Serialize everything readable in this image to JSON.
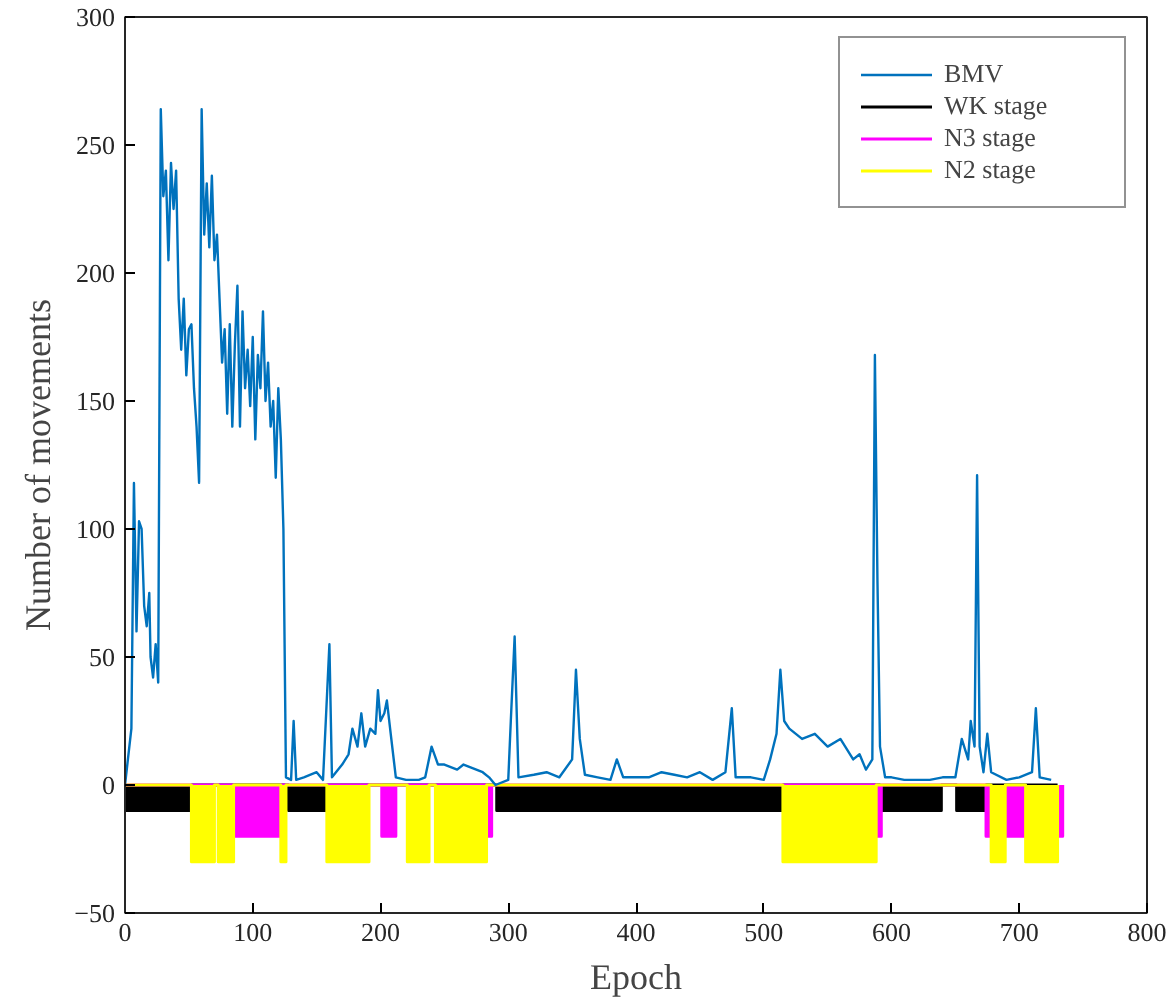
{
  "chart_data": {
    "type": "line",
    "xlabel": "Epoch",
    "ylabel": "Number of movements",
    "xlim": [
      0,
      800
    ],
    "ylim": [
      -50,
      300
    ],
    "xticks": [
      0,
      100,
      200,
      300,
      400,
      500,
      600,
      700,
      800
    ],
    "yticks": [
      -50,
      0,
      50,
      100,
      150,
      200,
      250,
      300
    ],
    "grid": false,
    "legend": "top right",
    "series": [
      {
        "name": "BMV",
        "color": "#0072bd",
        "x": [
          0,
          5,
          7,
          9,
          11,
          13,
          15,
          17,
          19,
          20,
          22,
          24,
          26,
          28,
          30,
          32,
          34,
          36,
          38,
          40,
          42,
          44,
          46,
          48,
          50,
          52,
          54,
          56,
          58,
          60,
          62,
          64,
          66,
          68,
          70,
          72,
          74,
          76,
          78,
          80,
          82,
          84,
          86,
          88,
          90,
          92,
          94,
          96,
          98,
          100,
          102,
          104,
          106,
          108,
          110,
          112,
          114,
          116,
          118,
          120,
          122,
          124,
          126,
          130,
          132,
          134,
          140,
          150,
          155,
          160,
          162,
          170,
          175,
          178,
          182,
          185,
          188,
          192,
          196,
          198,
          200,
          203,
          205,
          208,
          212,
          220,
          230,
          235,
          240,
          245,
          250,
          260,
          265,
          270,
          280,
          285,
          290,
          300,
          302,
          305,
          308,
          320,
          330,
          340,
          350,
          353,
          356,
          360,
          370,
          380,
          385,
          390,
          400,
          410,
          420,
          430,
          440,
          450,
          460,
          470,
          475,
          478,
          490,
          500,
          505,
          510,
          513,
          516,
          520,
          530,
          540,
          550,
          560,
          570,
          575,
          580,
          585,
          587,
          589,
          591,
          595,
          600,
          610,
          620,
          630,
          640,
          650,
          655,
          660,
          662,
          665,
          667,
          669,
          672,
          675,
          678,
          690,
          700,
          710,
          713,
          716,
          725
        ],
        "values": [
          0,
          22,
          118,
          60,
          103,
          100,
          70,
          62,
          75,
          50,
          42,
          55,
          40,
          264,
          230,
          240,
          205,
          243,
          225,
          240,
          190,
          170,
          190,
          160,
          178,
          180,
          155,
          140,
          118,
          264,
          215,
          235,
          210,
          238,
          205,
          215,
          190,
          165,
          178,
          145,
          180,
          140,
          172,
          195,
          140,
          185,
          155,
          170,
          148,
          175,
          135,
          168,
          155,
          185,
          150,
          165,
          140,
          150,
          120,
          155,
          135,
          100,
          3,
          2,
          25,
          2,
          3,
          5,
          2,
          55,
          3,
          8,
          12,
          22,
          15,
          28,
          15,
          22,
          20,
          37,
          25,
          28,
          33,
          20,
          3,
          2,
          2,
          3,
          15,
          8,
          8,
          6,
          8,
          7,
          5,
          3,
          0,
          2,
          25,
          58,
          3,
          4,
          5,
          3,
          10,
          45,
          18,
          4,
          3,
          2,
          10,
          3,
          3,
          3,
          5,
          4,
          3,
          5,
          2,
          5,
          30,
          3,
          3,
          2,
          10,
          20,
          45,
          25,
          22,
          18,
          20,
          15,
          18,
          10,
          12,
          6,
          10,
          168,
          80,
          15,
          3,
          3,
          2,
          2,
          2,
          3,
          3,
          18,
          10,
          25,
          15,
          121,
          15,
          5,
          20,
          5,
          2,
          3,
          5,
          30,
          3,
          2
        ]
      },
      {
        "name": "WK stage",
        "color": "#000000",
        "type": "area",
        "x": [
          0,
          0,
          52,
          52,
          128,
          128,
          158,
          158,
          291,
          291,
          515,
          515,
          591,
          591,
          639,
          639,
          651,
          651,
          674,
          674,
          730
        ],
        "values": [
          0,
          -10,
          -10,
          0,
          0,
          -10,
          -10,
          0,
          0,
          -10,
          -10,
          0,
          0,
          -10,
          -10,
          0,
          0,
          -10,
          -10,
          0,
          0
        ]
      },
      {
        "name": "N3 stage",
        "color": "#ff00ff",
        "type": "area",
        "x": [
          0,
          85,
          85,
          122,
          122,
          201,
          201,
          212,
          212,
          283,
          283,
          287,
          287,
          588,
          588,
          592,
          592,
          674,
          674,
          734,
          734
        ],
        "values": [
          0,
          0,
          -20,
          -20,
          0,
          0,
          -20,
          -20,
          0,
          0,
          -20,
          -20,
          0,
          0,
          -20,
          -20,
          0,
          0,
          -20,
          -20,
          0
        ]
      },
      {
        "name": "N2 stage",
        "color": "#ffff00",
        "type": "area",
        "x": [
          0,
          52,
          52,
          70,
          70,
          73,
          73,
          85,
          85,
          122,
          122,
          126,
          126,
          158,
          158,
          191,
          191,
          221,
          221,
          238,
          238,
          243,
          243,
          283,
          283,
          515,
          515,
          588,
          588,
          678,
          678,
          689,
          689,
          705,
          705,
          730,
          730
        ],
        "values": [
          0,
          0,
          -30,
          -30,
          0,
          0,
          -30,
          -30,
          0,
          0,
          -30,
          -30,
          0,
          0,
          -30,
          -30,
          0,
          0,
          -30,
          -30,
          0,
          0,
          -30,
          -30,
          0,
          0,
          -30,
          -30,
          0,
          0,
          -30,
          -30,
          0,
          0,
          -30,
          -30,
          0
        ]
      }
    ]
  }
}
